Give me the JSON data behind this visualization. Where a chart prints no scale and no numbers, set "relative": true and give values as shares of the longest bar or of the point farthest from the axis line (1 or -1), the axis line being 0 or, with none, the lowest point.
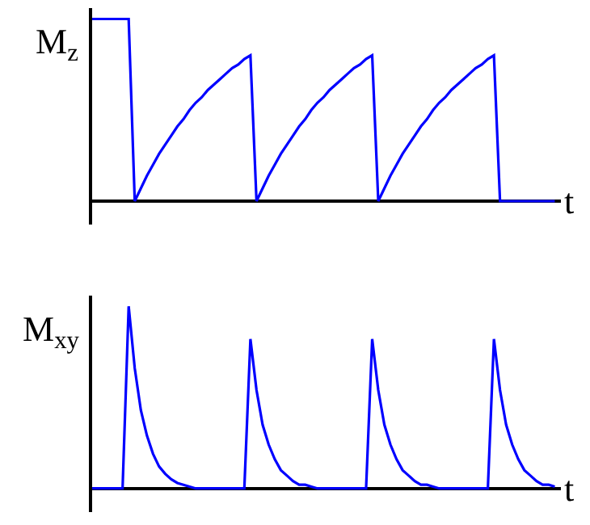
{
  "chart_data": [
    {
      "type": "line",
      "relative": true,
      "ylabel": "M$_{z}$",
      "xlabel": "t",
      "marker": "none",
      "line_style": "solid",
      "categories": [
        null,
        null,
        null,
        null,
        null,
        null,
        null,
        null,
        null,
        null,
        null,
        null,
        null,
        null,
        null,
        null,
        null,
        null,
        null,
        null,
        null,
        null,
        null,
        null,
        null,
        null,
        null,
        null,
        null,
        null,
        null,
        null,
        null,
        null,
        null,
        null,
        null,
        null,
        null,
        null,
        null,
        null,
        null,
        null,
        null,
        null,
        null,
        null,
        null,
        null,
        null,
        null,
        null,
        null,
        null,
        null,
        null,
        null,
        null,
        null,
        null,
        null,
        null,
        null,
        null,
        null,
        null,
        null,
        null,
        null,
        null,
        null,
        null,
        null,
        null,
        null,
        null
      ],
      "series": [
        {
          "color": "#0000ff",
          "values": [
            1,
            1,
            1,
            1,
            1,
            1,
            1,
            0,
            0.07,
            0.14,
            0.2,
            0.26,
            0.31,
            0.36,
            0.41,
            0.45,
            0.5,
            0.54,
            0.57,
            0.61,
            0.64,
            0.67,
            0.7,
            0.73,
            0.75,
            0.78,
            0.8,
            0,
            0.07,
            0.14,
            0.2,
            0.26,
            0.31,
            0.36,
            0.41,
            0.45,
            0.5,
            0.54,
            0.57,
            0.61,
            0.64,
            0.67,
            0.7,
            0.73,
            0.75,
            0.78,
            0.8,
            0,
            0.07,
            0.14,
            0.2,
            0.26,
            0.31,
            0.36,
            0.41,
            0.45,
            0.5,
            0.54,
            0.57,
            0.61,
            0.64,
            0.67,
            0.7,
            0.73,
            0.75,
            0.78,
            0.8,
            0,
            0,
            0,
            0,
            0,
            0,
            0,
            0,
            0,
            0
          ]
        }
      ]
    },
    {
      "type": "line",
      "relative": true,
      "ylabel": "M$_{xy}$",
      "xlabel": "t",
      "marker": "none",
      "line_style": "solid",
      "categories": [
        null,
        null,
        null,
        null,
        null,
        null,
        null,
        null,
        null,
        null,
        null,
        null,
        null,
        null,
        null,
        null,
        null,
        null,
        null,
        null,
        null,
        null,
        null,
        null,
        null,
        null,
        null,
        null,
        null,
        null,
        null,
        null,
        null,
        null,
        null,
        null,
        null,
        null,
        null,
        null,
        null,
        null,
        null,
        null,
        null,
        null,
        null,
        null,
        null,
        null,
        null,
        null,
        null,
        null,
        null,
        null,
        null,
        null,
        null,
        null,
        null,
        null,
        null,
        null,
        null,
        null,
        null,
        null,
        null,
        null,
        null,
        null,
        null,
        null,
        null,
        null,
        null
      ],
      "series": [
        {
          "color": "#0000ff",
          "values": [
            0,
            0,
            0,
            0,
            0,
            0,
            1,
            0.66,
            0.43,
            0.29,
            0.19,
            0.12,
            0.08,
            0.05,
            0.03,
            0.02,
            0.01,
            0,
            0,
            0,
            0,
            0,
            0,
            0,
            0,
            0,
            0.82,
            0.54,
            0.35,
            0.24,
            0.16,
            0.1,
            0.07,
            0.04,
            0.02,
            0.02,
            0.01,
            0,
            0,
            0,
            0,
            0,
            0,
            0,
            0,
            0,
            0.82,
            0.54,
            0.35,
            0.24,
            0.16,
            0.1,
            0.07,
            0.04,
            0.02,
            0.02,
            0.01,
            0,
            0,
            0,
            0,
            0,
            0,
            0,
            0,
            0,
            0.82,
            0.54,
            0.35,
            0.24,
            0.16,
            0.1,
            0.07,
            0.04,
            0.02,
            0.02,
            0.01
          ]
        }
      ]
    }
  ]
}
